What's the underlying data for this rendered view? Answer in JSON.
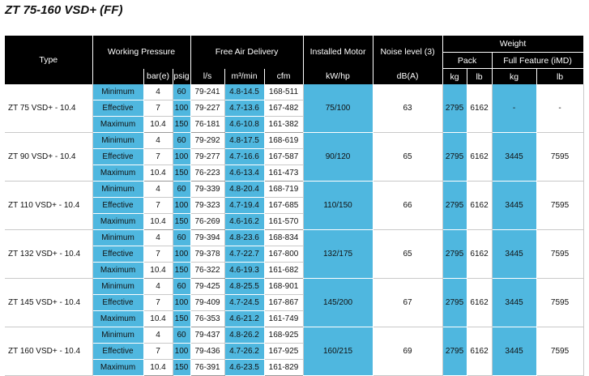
{
  "title": "ZT 75-160 VSD+ (FF)",
  "headers": {
    "type": "Type",
    "working_pressure": "Working Pressure",
    "free_air_delivery": "Free Air Delivery",
    "installed_motor": "Installed Motor",
    "noise_level": "Noise level (3)",
    "weight": "Weight",
    "pack": "Pack",
    "full_feature": "Full Feature (iMD)",
    "bar": "bar(e)",
    "psig": "psig",
    "ls": "l/s",
    "m3min": "m³/min",
    "cfm": "cfm",
    "kwhp": "kW/hp",
    "dba": "dB(A)",
    "pack_kg": "kg",
    "pack_lb": "lb",
    "ff_kg": "kg",
    "ff_lb": "lb"
  },
  "row_labels": [
    "Minimum",
    "Effective",
    "Maximum"
  ],
  "models": [
    {
      "type": "ZT 75 VSD+ - 10.4",
      "motor": "75/100",
      "noise": "63",
      "pack_kg": "2795",
      "pack_lb": "6162",
      "ff_kg": "-",
      "ff_lb": "-",
      "rows": [
        {
          "bar": "4",
          "psig": "60",
          "ls": "79-241",
          "m3": "4.8-14.5",
          "cfm": "168-511"
        },
        {
          "bar": "7",
          "psig": "100",
          "ls": "79-227",
          "m3": "4.7-13.6",
          "cfm": "167-482"
        },
        {
          "bar": "10.4",
          "psig": "150",
          "ls": "76-181",
          "m3": "4.6-10.8",
          "cfm": "161-382"
        }
      ]
    },
    {
      "type": "ZT 90 VSD+ - 10.4",
      "motor": "90/120",
      "noise": "65",
      "pack_kg": "2795",
      "pack_lb": "6162",
      "ff_kg": "3445",
      "ff_lb": "7595",
      "rows": [
        {
          "bar": "4",
          "psig": "60",
          "ls": "79-292",
          "m3": "4.8-17.5",
          "cfm": "168-619"
        },
        {
          "bar": "7",
          "psig": "100",
          "ls": "79-277",
          "m3": "4.7-16.6",
          "cfm": "167-587"
        },
        {
          "bar": "10.4",
          "psig": "150",
          "ls": "76-223",
          "m3": "4.6-13.4",
          "cfm": "161-473"
        }
      ]
    },
    {
      "type": "ZT 110 VSD+ - 10.4",
      "motor": "110/150",
      "noise": "66",
      "pack_kg": "2795",
      "pack_lb": "6162",
      "ff_kg": "3445",
      "ff_lb": "7595",
      "rows": [
        {
          "bar": "4",
          "psig": "60",
          "ls": "79-339",
          "m3": "4.8-20.4",
          "cfm": "168-719"
        },
        {
          "bar": "7",
          "psig": "100",
          "ls": "79-323",
          "m3": "4.7-19.4",
          "cfm": "167-685"
        },
        {
          "bar": "10.4",
          "psig": "150",
          "ls": "76-269",
          "m3": "4.6-16.2",
          "cfm": "161-570"
        }
      ]
    },
    {
      "type": "ZT 132 VSD+ - 10.4",
      "motor": "132/175",
      "noise": "65",
      "pack_kg": "2795",
      "pack_lb": "6162",
      "ff_kg": "3445",
      "ff_lb": "7595",
      "rows": [
        {
          "bar": "4",
          "psig": "60",
          "ls": "79-394",
          "m3": "4.8-23.6",
          "cfm": "168-834"
        },
        {
          "bar": "7",
          "psig": "100",
          "ls": "79-378",
          "m3": "4.7-22.7",
          "cfm": "167-800"
        },
        {
          "bar": "10.4",
          "psig": "150",
          "ls": "76-322",
          "m3": "4.6-19.3",
          "cfm": "161-682"
        }
      ]
    },
    {
      "type": "ZT 145 VSD+ - 10.4",
      "motor": "145/200",
      "noise": "67",
      "pack_kg": "2795",
      "pack_lb": "6162",
      "ff_kg": "3445",
      "ff_lb": "7595",
      "rows": [
        {
          "bar": "4",
          "psig": "60",
          "ls": "79-425",
          "m3": "4.8-25.5",
          "cfm": "168-901"
        },
        {
          "bar": "7",
          "psig": "100",
          "ls": "79-409",
          "m3": "4.7-24.5",
          "cfm": "167-867"
        },
        {
          "bar": "10.4",
          "psig": "150",
          "ls": "76-353",
          "m3": "4.6-21.2",
          "cfm": "161-749"
        }
      ]
    },
    {
      "type": "ZT 160 VSD+ - 10.4",
      "motor": "160/215",
      "noise": "69",
      "pack_kg": "2795",
      "pack_lb": "6162",
      "ff_kg": "3445",
      "ff_lb": "7595",
      "rows": [
        {
          "bar": "4",
          "psig": "60",
          "ls": "79-437",
          "m3": "4.8-26.2",
          "cfm": "168-925"
        },
        {
          "bar": "7",
          "psig": "100",
          "ls": "79-436",
          "m3": "4.7-26.2",
          "cfm": "167-925"
        },
        {
          "bar": "10.4",
          "psig": "150",
          "ls": "76-391",
          "m3": "4.6-23.5",
          "cfm": "161-829"
        }
      ]
    }
  ]
}
